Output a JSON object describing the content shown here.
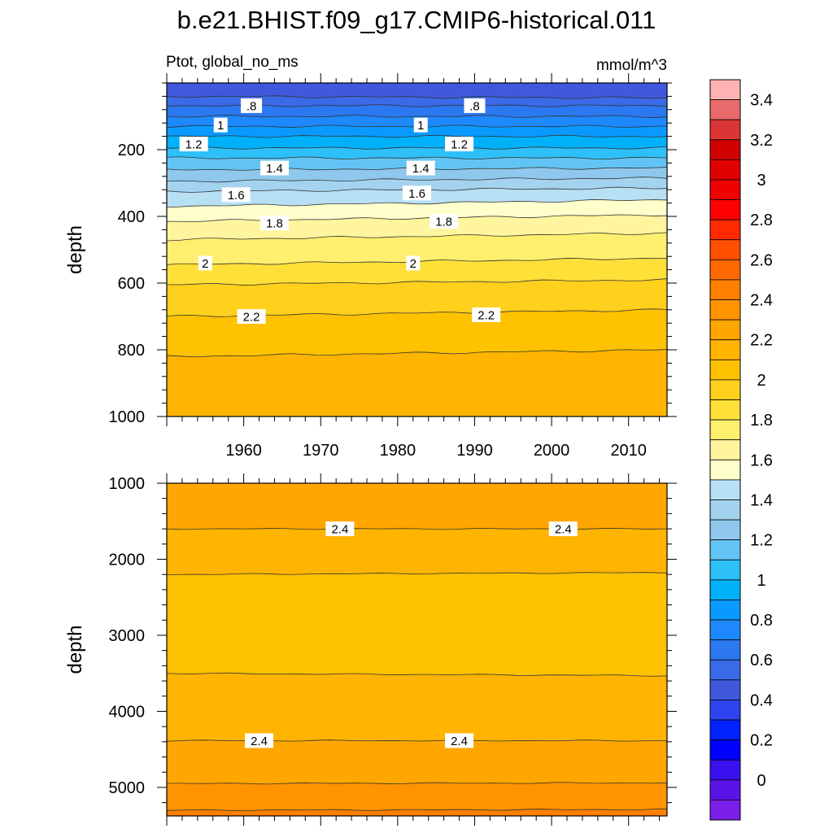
{
  "title": "b.e21.BHIST.f09_g17.CMIP6-historical.011",
  "subtitle_left": "Ptot, global_no_ms",
  "subtitle_right": "mmol/m^3",
  "chart_data": [
    {
      "type": "contour",
      "panel": "upper",
      "ylabel": "depth",
      "xlim": [
        1950,
        2015
      ],
      "ylim": [
        1000,
        0
      ],
      "x_ticks": [
        1960,
        1970,
        1980,
        1990,
        2000,
        2010
      ],
      "x_tick_labels": [
        "1960",
        "1970",
        "1980",
        "1990",
        "2000",
        "2010"
      ],
      "y_ticks": [
        200,
        400,
        600,
        800,
        1000
      ],
      "y_tick_labels": [
        "200",
        "400",
        "600",
        "800",
        "1000"
      ],
      "y_top_value": 5,
      "contour_levels": [
        {
          "value": 0.7,
          "depth_start": 40,
          "depth_end": 45
        },
        {
          "value": 0.8,
          "depth_start": 68,
          "depth_end": 68
        },
        {
          "value": 0.9,
          "depth_start": 100,
          "depth_end": 100
        },
        {
          "value": 1.0,
          "depth_start": 130,
          "depth_end": 130
        },
        {
          "value": 1.1,
          "depth_start": 160,
          "depth_end": 160
        },
        {
          "value": 1.2,
          "depth_start": 195,
          "depth_end": 195
        },
        {
          "value": 1.3,
          "depth_start": 225,
          "depth_end": 225
        },
        {
          "value": 1.4,
          "depth_start": 260,
          "depth_end": 255
        },
        {
          "value": 1.5,
          "depth_start": 295,
          "depth_end": 285
        },
        {
          "value": 1.6,
          "depth_start": 325,
          "depth_end": 315
        },
        {
          "value": 1.7,
          "depth_start": 370,
          "depth_end": 350
        },
        {
          "value": 1.8,
          "depth_start": 415,
          "depth_end": 395
        },
        {
          "value": 1.9,
          "depth_start": 470,
          "depth_end": 450
        },
        {
          "value": 2.0,
          "depth_start": 545,
          "depth_end": 525
        },
        {
          "value": 2.1,
          "depth_start": 605,
          "depth_end": 590
        },
        {
          "value": 2.2,
          "depth_start": 700,
          "depth_end": 680
        },
        {
          "value": 2.3,
          "depth_start": 820,
          "depth_end": 800
        }
      ],
      "contour_labels": [
        {
          "text": ".8",
          "year": 1961,
          "depth": 68
        },
        {
          "text": ".8",
          "year": 1990,
          "depth": 68
        },
        {
          "text": "1",
          "year": 1957,
          "depth": 126
        },
        {
          "text": "1",
          "year": 1983,
          "depth": 126
        },
        {
          "text": "1.2",
          "year": 1953.5,
          "depth": 183
        },
        {
          "text": "1.2",
          "year": 1988,
          "depth": 183
        },
        {
          "text": "1.4",
          "year": 1964,
          "depth": 255
        },
        {
          "text": "1.4",
          "year": 1983,
          "depth": 255
        },
        {
          "text": "1.6",
          "year": 1959,
          "depth": 335
        },
        {
          "text": "1.6",
          "year": 1982.5,
          "depth": 330
        },
        {
          "text": "1.8",
          "year": 1964,
          "depth": 420
        },
        {
          "text": "1.8",
          "year": 1986,
          "depth": 415
        },
        {
          "text": "2",
          "year": 1955,
          "depth": 540
        },
        {
          "text": "2",
          "year": 1982,
          "depth": 540
        },
        {
          "text": "2.2",
          "year": 1961,
          "depth": 700
        },
        {
          "text": "2.2",
          "year": 1991.5,
          "depth": 695
        }
      ]
    },
    {
      "type": "contour",
      "panel": "lower",
      "ylabel": "depth",
      "xlim": [
        1950,
        2015
      ],
      "ylim": [
        5375,
        1000
      ],
      "y_ticks": [
        1000,
        2000,
        3000,
        4000,
        5000
      ],
      "y_tick_labels": [
        "1000",
        "2000",
        "3000",
        "4000",
        "5000"
      ],
      "contour_levels": [
        {
          "value": 2.4,
          "depth_start": 1600,
          "depth_end": 1600
        },
        {
          "value": 2.3,
          "depth_start": 2200,
          "depth_end": 2175
        },
        {
          "value": 2.3,
          "depth_start": 3500,
          "depth_end": 3530
        },
        {
          "value": 2.4,
          "depth_start": 4385,
          "depth_end": 4385
        },
        {
          "value": 2.5,
          "depth_start": 4950,
          "depth_end": 4940
        },
        {
          "value": 2.6,
          "depth_start": 5300,
          "depth_end": 5290
        }
      ],
      "contour_labels": [
        {
          "text": "2.4",
          "year": 1972.5,
          "depth": 1600
        },
        {
          "text": "2.4",
          "year": 2001.5,
          "depth": 1600
        },
        {
          "text": "2.4",
          "year": 1962,
          "depth": 4385
        },
        {
          "text": "2.4",
          "year": 1988,
          "depth": 4385
        }
      ]
    }
  ],
  "colorbar": {
    "colors": [
      "#FFB2B2",
      "#E86A6A",
      "#DC3535",
      "#D00000",
      "#E00000",
      "#EE0000",
      "#FF0000",
      "#FF2A00",
      "#FF5000",
      "#FF6A00",
      "#FF7F00",
      "#FF9400",
      "#FFA600",
      "#FFB400",
      "#FFC200",
      "#FFD01C",
      "#FFE038",
      "#FFEF6E",
      "#FFF59E",
      "#FFFFCC",
      "#B8E0F4",
      "#A4D3F0",
      "#8FC8EC",
      "#62C4F4",
      "#2EC0F8",
      "#00B0F8",
      "#0A9AFF",
      "#1E88FF",
      "#2C78F0",
      "#3A6AE8",
      "#4058DC",
      "#2E44EE",
      "#0022FF",
      "#0000FF",
      "#3A10EE",
      "#5A14E8",
      "#7A1EEA"
    ],
    "tick_labels": [
      "3.4",
      "3.2",
      "3",
      "2.8",
      "2.6",
      "2.4",
      "2.2",
      "2",
      "1.8",
      "1.6",
      "1.4",
      "1.2",
      "1",
      "0.8",
      "0.6",
      "0.4",
      "0.2",
      "0"
    ]
  }
}
